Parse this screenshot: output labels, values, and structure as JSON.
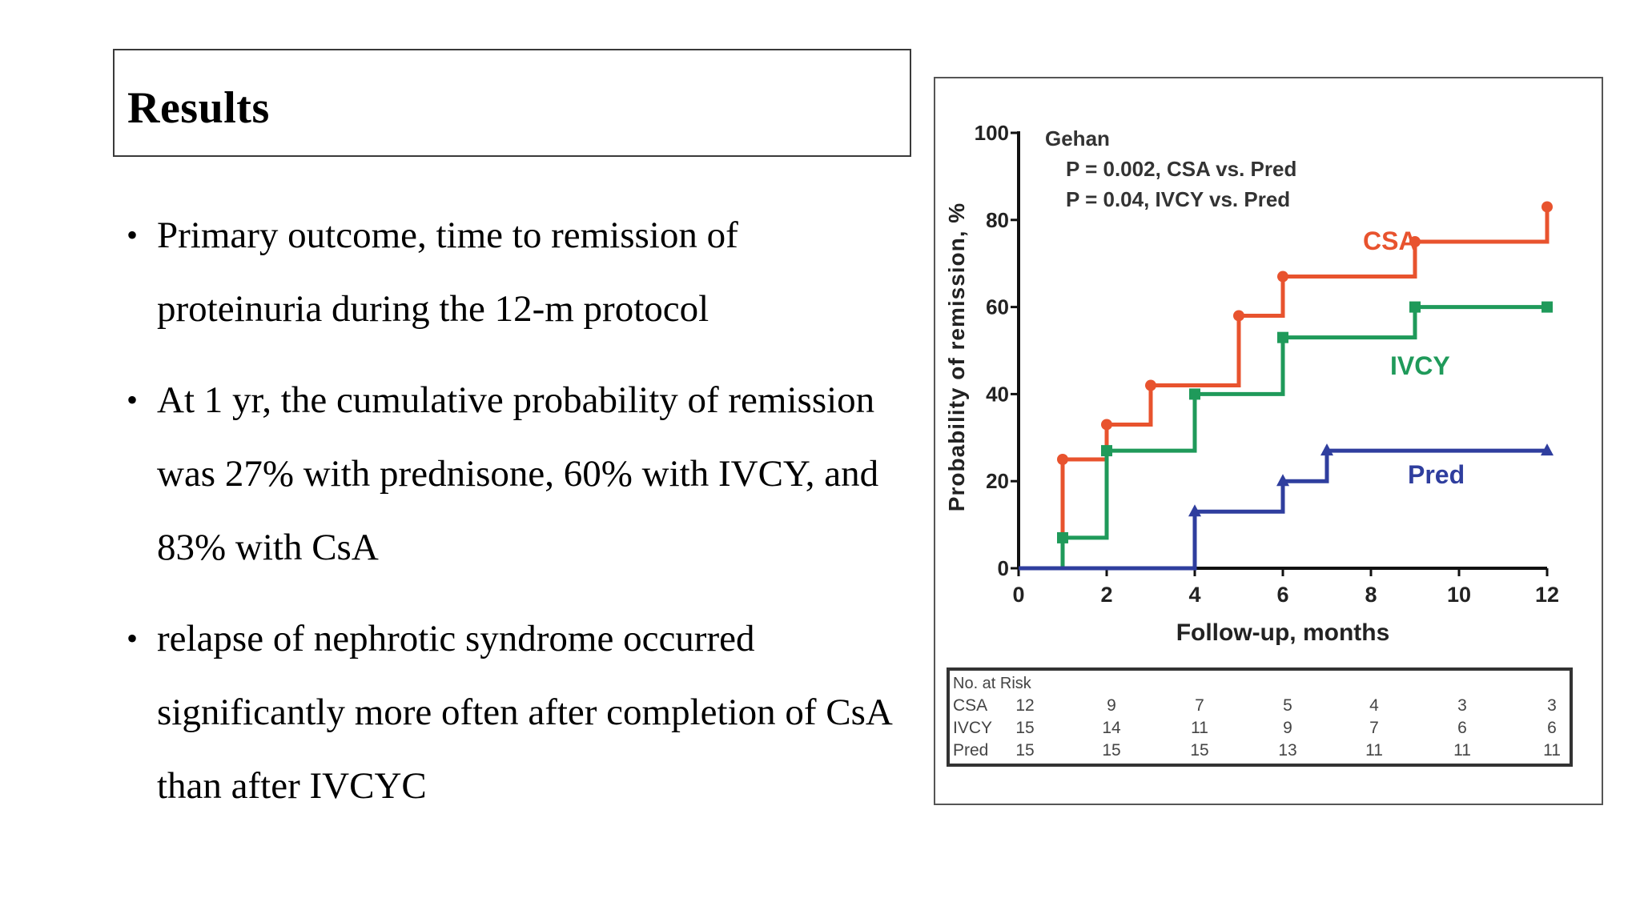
{
  "slide": {
    "title": "Results",
    "bullets": [
      "Primary outcome, time to remission of proteinuria during the 12-m protocol",
      "At 1 yr, the cumulative probability of remission was 27% with prednisone, 60% with IVCY, and 83% with CsA",
      "relapse of nephrotic syndrome occurred significantly more often after completion of CsA than after IVCYC"
    ]
  },
  "chart_data": {
    "type": "line",
    "step": true,
    "xlabel": "Follow-up, months",
    "ylabel": "Probability of remission, %",
    "xlim": [
      0,
      12
    ],
    "ylim": [
      0,
      100
    ],
    "xticks": [
      0,
      2,
      4,
      6,
      8,
      10,
      12
    ],
    "yticks": [
      0,
      20,
      40,
      60,
      80,
      100
    ],
    "annotation": {
      "lines": [
        "Gehan",
        "P = 0.002, CSA vs. Pred",
        "P = 0.04, IVCY vs. Pred"
      ]
    },
    "series": [
      {
        "name": "CSA",
        "color": "#e8532e",
        "marker": "circle",
        "x": [
          0,
          1,
          2,
          3,
          5,
          6,
          9,
          12
        ],
        "y": [
          0,
          25,
          33,
          42,
          58,
          67,
          75,
          83
        ]
      },
      {
        "name": "IVCY",
        "color": "#1f9a5a",
        "marker": "square",
        "x": [
          0,
          1,
          2,
          4,
          6,
          9,
          12
        ],
        "y": [
          0,
          7,
          27,
          40,
          53,
          60,
          60
        ]
      },
      {
        "name": "Pred",
        "color": "#2f3e9e",
        "marker": "triangle",
        "x": [
          0,
          4,
          6,
          7,
          12
        ],
        "y": [
          0,
          13,
          20,
          27,
          27
        ]
      }
    ],
    "risk_table": {
      "header": "No. at Risk",
      "rows": [
        {
          "label": "CSA",
          "values": [
            "12",
            "9",
            "7",
            "5",
            "4",
            "3",
            "3"
          ]
        },
        {
          "label": "IVCY",
          "values": [
            "15",
            "14",
            "11",
            "9",
            "7",
            "6",
            "6"
          ]
        },
        {
          "label": "Pred",
          "values": [
            "15",
            "15",
            "15",
            "13",
            "11",
            "11",
            "11"
          ]
        }
      ]
    }
  }
}
